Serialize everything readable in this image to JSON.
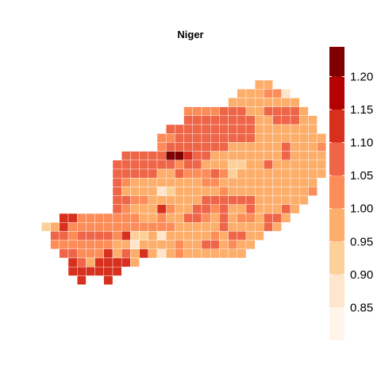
{
  "title": "Niger",
  "legend": {
    "ticks": [
      {
        "label": "0.85",
        "value": 0.85
      },
      {
        "label": "0.90",
        "value": 0.9
      },
      {
        "label": "0.95",
        "value": 0.95
      },
      {
        "label": "1.00",
        "value": 1.0
      },
      {
        "label": "1.05",
        "value": 1.05
      },
      {
        "label": "1.10",
        "value": 1.1
      },
      {
        "label": "1.15",
        "value": 1.15
      },
      {
        "label": "1.20",
        "value": 1.2
      }
    ],
    "bins": [
      {
        "min": 0.8,
        "max": 0.85,
        "color": "#fff5eb"
      },
      {
        "min": 0.85,
        "max": 0.9,
        "color": "#fee6ce"
      },
      {
        "min": 0.9,
        "max": 0.95,
        "color": "#fdd09a"
      },
      {
        "min": 0.95,
        "max": 1.0,
        "color": "#fdae6b"
      },
      {
        "min": 1.0,
        "max": 1.05,
        "color": "#fc8d59"
      },
      {
        "min": 1.05,
        "max": 1.1,
        "color": "#ef6548"
      },
      {
        "min": 1.1,
        "max": 1.15,
        "color": "#d7301f"
      },
      {
        "min": 1.15,
        "max": 1.2,
        "color": "#b30000"
      },
      {
        "min": 1.2,
        "max": 1.245,
        "color": "#7f0000"
      }
    ]
  },
  "chart_data": {
    "type": "heatmap",
    "title": "Niger",
    "value_range": [
      0.8,
      1.245
    ],
    "level_key": {
      "a": 0.825,
      "b": 0.875,
      "c": 0.925,
      "d": 0.975,
      "e": 1.025,
      "f": 1.075,
      "g": 1.125,
      "h": 1.175,
      "i": 1.22,
      ".": null
    },
    "first_row": 0,
    "first_col": 0,
    "rows": [
      "..........................dd....",
      "........................dddeeb..",
      ".......................dddddddd..",
      "..................eeeefffddffffd.",
      "..................ffffffffddfffdd",
      "................ffffffffffddddddd.",
      "...............eefffffffffdddddddd",
      "...............efffffffddddddfddde",
      "...........fffffiigffddddddddfdddd",
      "..........fffffffeffdddccddfdddddd",
      "..........fffffddfeeefecdddddddddd",
      "..........feddddddddeeddddddddddd",
      "..........fddddbcdddddeddddddddde",
      "..........ffeeddddddffffffdddddd",
      "..........fedddgeddffefddfdddfd",
      "....ggeeeeeeeddeddffedfdeedffd",
      "..cdgeeeeeeeeeeeedddddfddddfd",
      "...ffeffffegccdbdddddedffdd",
      "...eeeeeeeddbddddeddffdedd",
      "....ffeeegdfdgdbdeddddddd",
      ".....gfdggggd",
      ".....gggggg",
      "......g..g"
    ]
  }
}
